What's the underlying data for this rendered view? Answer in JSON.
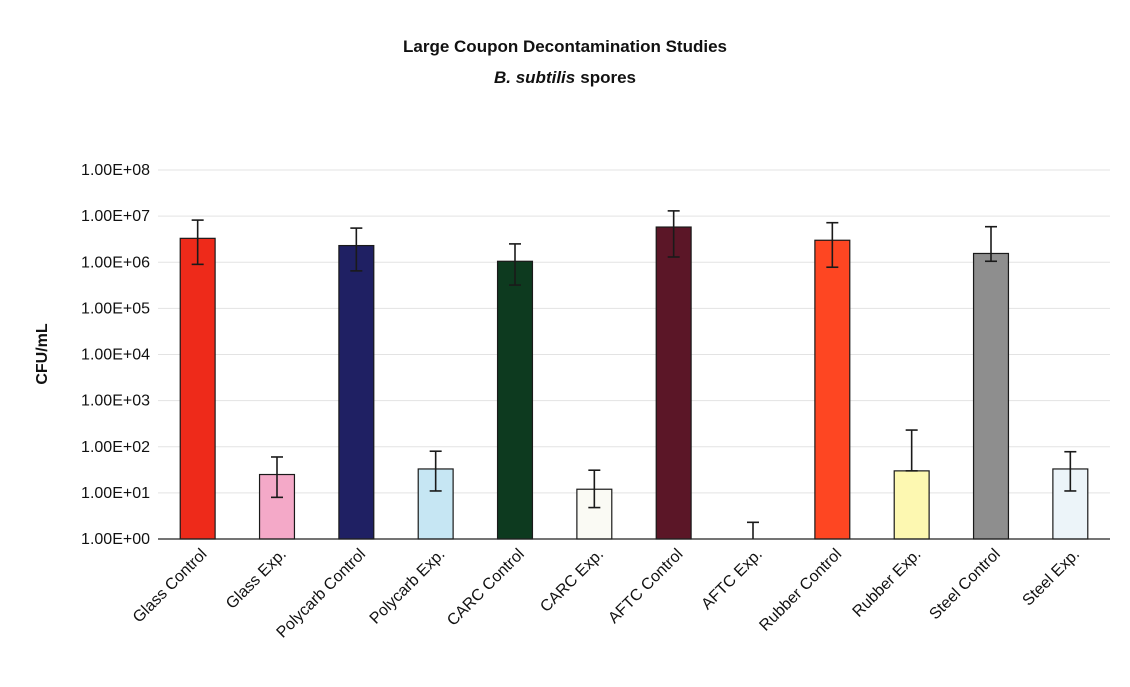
{
  "chart_data": {
    "type": "bar",
    "title": "Large Coupon Decontamination Studies",
    "subtitle_italic": "B. subtilis",
    "subtitle_rest": "spores",
    "xlabel": "",
    "ylabel": "CFU/mL",
    "y_scale": "log",
    "ylim": [
      1,
      100000000
    ],
    "grid": true,
    "legend": "none",
    "y_tick_values": [
      1,
      10,
      100,
      1000,
      10000,
      100000,
      1000000,
      10000000,
      100000000
    ],
    "y_tick_labels": [
      "1.00E+00",
      "1.00E+01",
      "1.00E+02",
      "1.00E+03",
      "1.00E+04",
      "1.00E+05",
      "1.00E+06",
      "1.00E+07",
      "1.00E+08"
    ],
    "categories": [
      "Glass Control",
      "Glass Exp.",
      "Polycarb Control",
      "Polycarb Exp.",
      "CARC Control",
      "CARC Exp.",
      "AFTC Control",
      "AFTC Exp.",
      "Rubber Control",
      "Rubber Exp.",
      "Steel Control",
      "Steel Exp."
    ],
    "values": [
      3300000,
      25,
      2300000,
      33,
      1050000,
      12,
      5800000,
      null,
      3000000,
      30,
      1550000,
      33
    ],
    "error_low": [
      900000,
      8,
      650000,
      11,
      320000,
      4.8,
      1300000,
      1,
      780000,
      30,
      1050000,
      11
    ],
    "error_high": [
      8200000,
      60,
      5500000,
      80,
      2500000,
      31,
      13000000,
      2.3,
      7200000,
      230,
      5900000,
      78
    ],
    "colors": [
      "#ee2a1a",
      "#f4a9c8",
      "#1f2063",
      "#c6e6f3",
      "#0d3a1f",
      "#fafaf4",
      "#5b1627",
      "#ffffff",
      "#fe4622",
      "#fdf8b1",
      "#8e8e8e",
      "#ecf4f9"
    ]
  }
}
